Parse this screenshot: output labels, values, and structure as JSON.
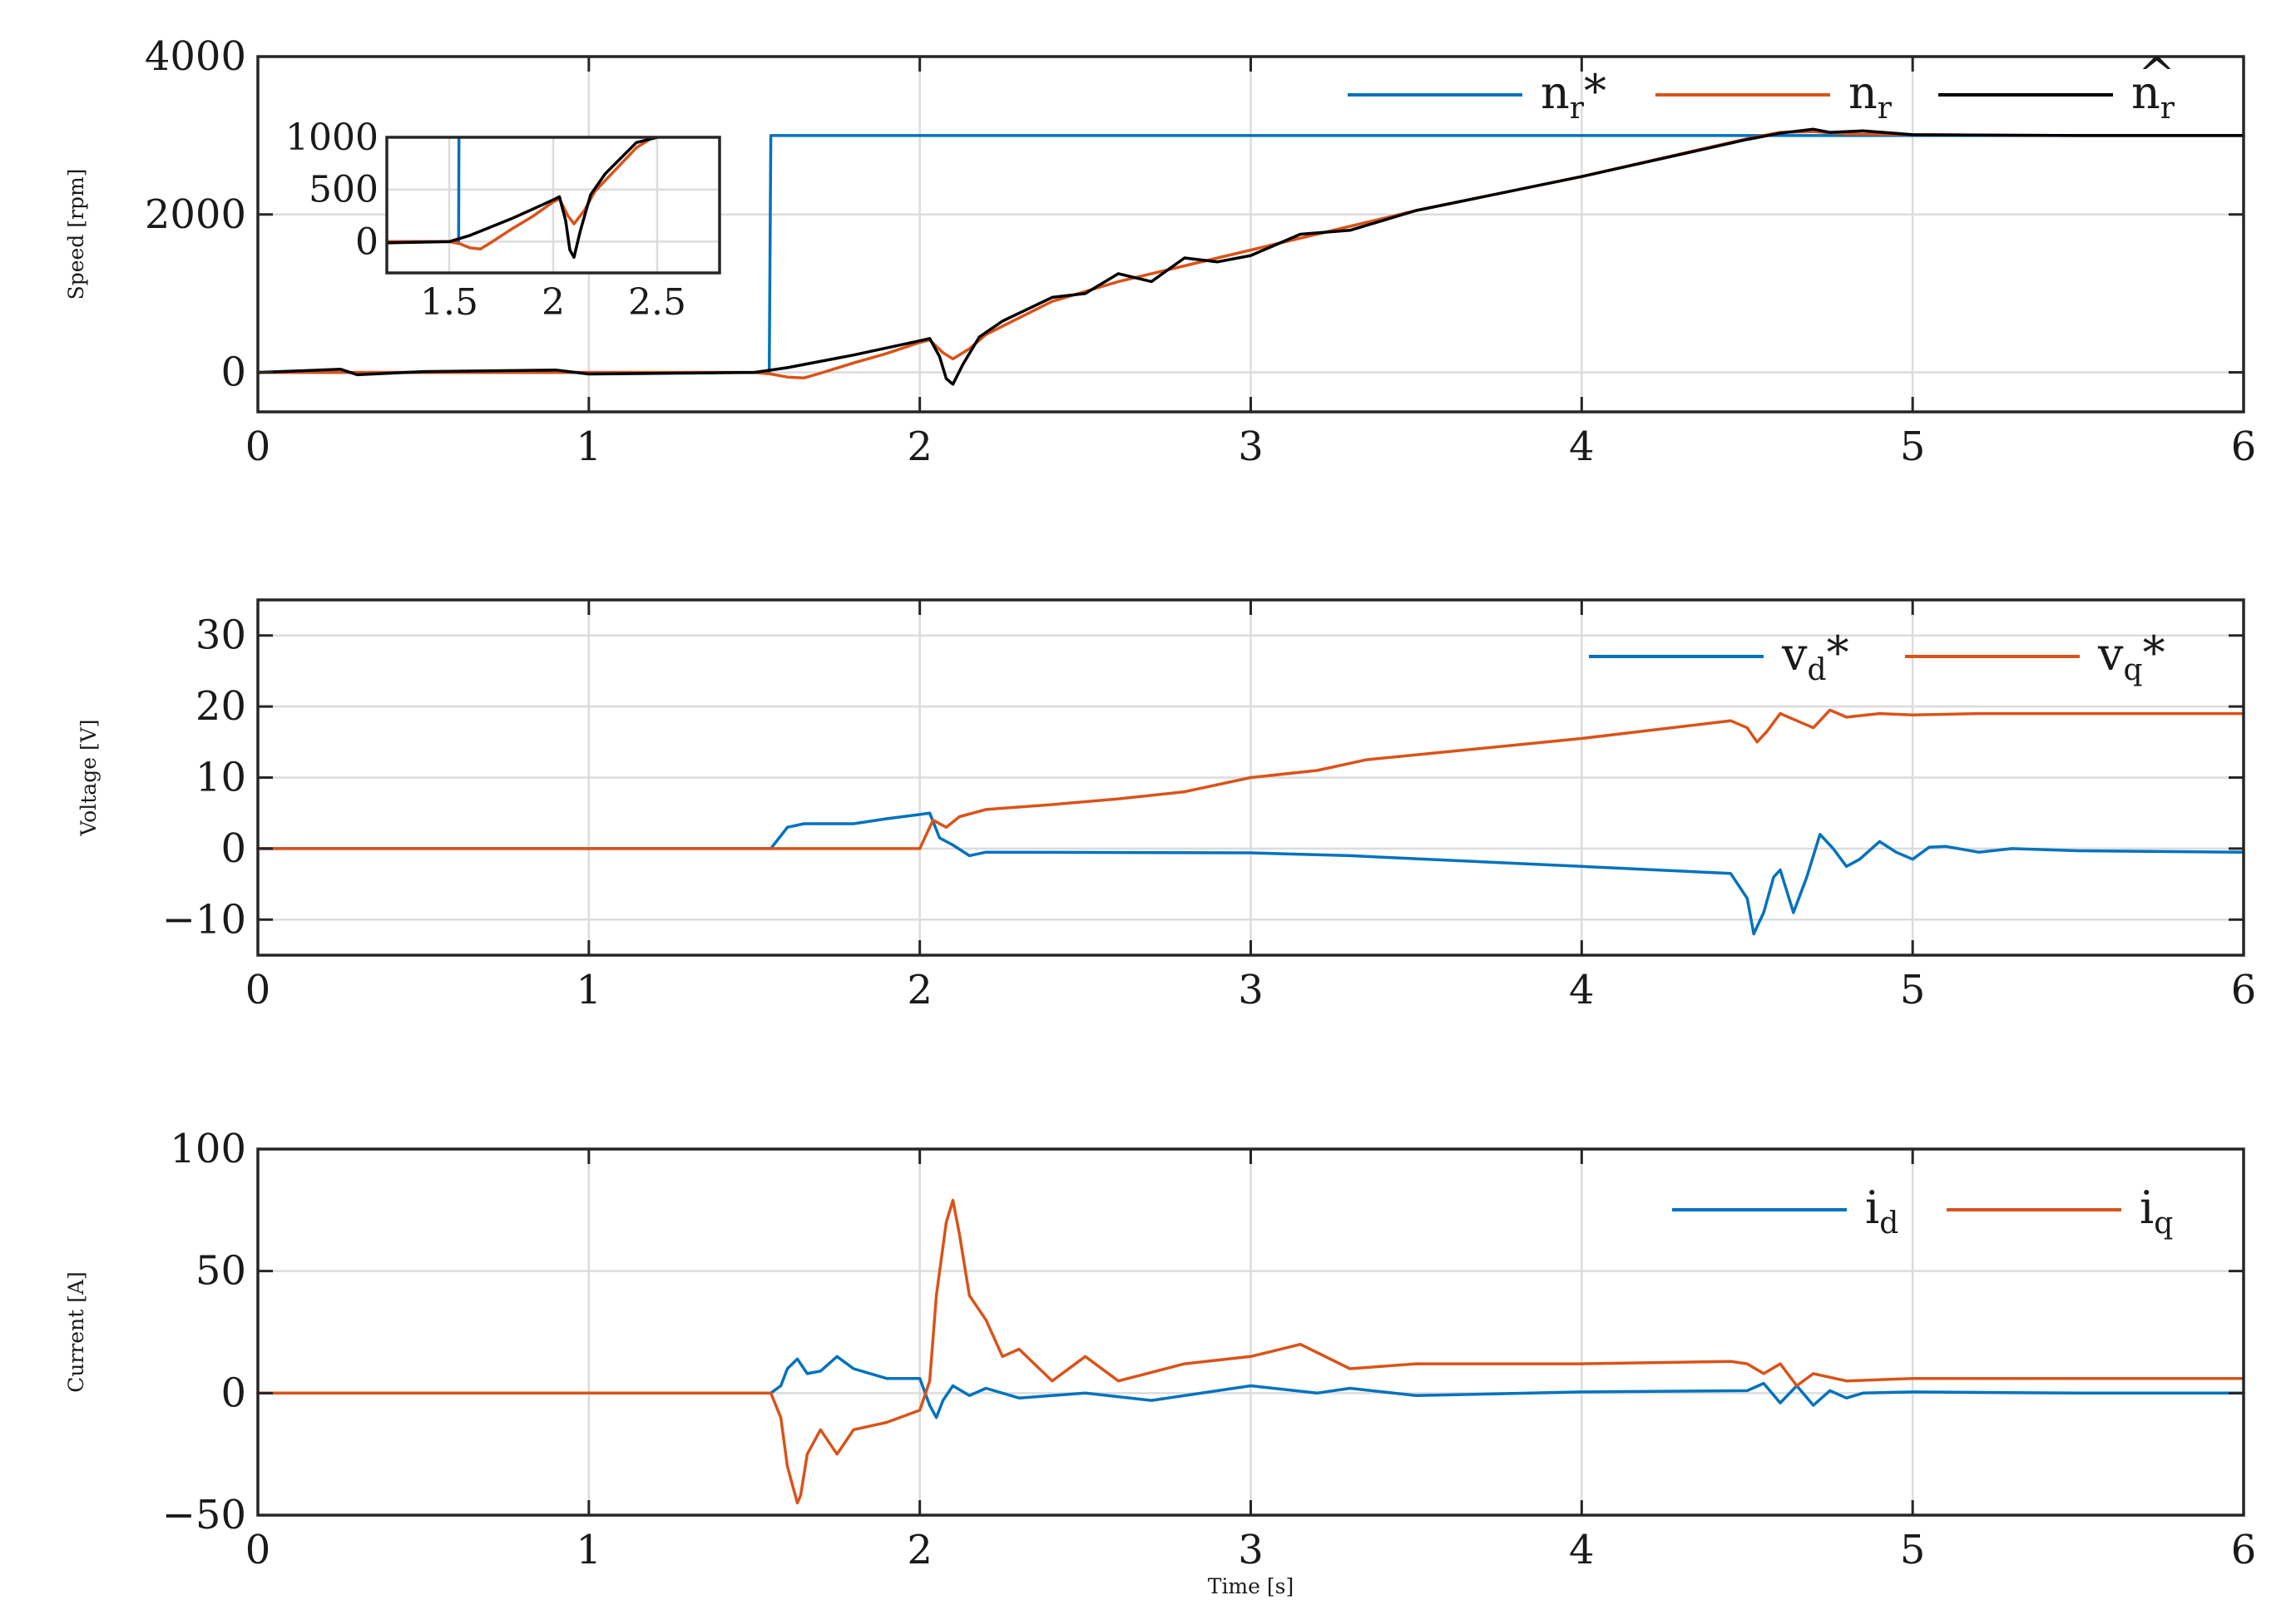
{
  "colors": {
    "blue": "#0072BD",
    "orange": "#D95319",
    "black": "#000000"
  },
  "chart_data": [
    {
      "type": "line",
      "id": "speed",
      "ylabel": "Speed [rpm]",
      "xlim": [
        0,
        6
      ],
      "ylim": [
        -500,
        4000
      ],
      "xticks": [
        0,
        1,
        2,
        3,
        4,
        5,
        6
      ],
      "xtick_labels": [
        "0",
        "1",
        "2",
        "3",
        "4",
        "5",
        "6"
      ],
      "yticks": [
        0,
        2000,
        4000
      ],
      "ytick_labels": [
        "0",
        "2000",
        "4000"
      ],
      "legend": [
        {
          "base": "n",
          "sub": "r",
          "suffix": "*",
          "hat": false,
          "color": "#0072BD"
        },
        {
          "base": "n",
          "sub": "r",
          "suffix": "",
          "hat": false,
          "color": "#D95319"
        },
        {
          "base": "n",
          "sub": "r",
          "suffix": "",
          "hat": true,
          "color": "#000000"
        }
      ],
      "series": [
        {
          "name": "n_r*",
          "color": "#0072BD",
          "x": [
            0,
            1.545,
            1.55,
            6
          ],
          "y": [
            0,
            0,
            3000,
            3000
          ]
        },
        {
          "name": "n_r",
          "color": "#D95319",
          "x": [
            0,
            0.5,
            1,
            1.5,
            1.55,
            1.6,
            1.65,
            1.7,
            1.8,
            1.9,
            2.0,
            2.03,
            2.07,
            2.1,
            2.15,
            2.2,
            2.4,
            2.6,
            2.8,
            3.0,
            3.3,
            3.5,
            4.0,
            4.5,
            4.6,
            4.7,
            4.8,
            5.0,
            5.5,
            6.0
          ],
          "y": [
            0,
            0,
            0,
            0,
            -20,
            -60,
            -70,
            -10,
            120,
            240,
            380,
            410,
            250,
            170,
            300,
            480,
            900,
            1150,
            1350,
            1550,
            1850,
            2050,
            2480,
            2960,
            3040,
            3050,
            3020,
            3010,
            3000,
            3000
          ]
        },
        {
          "name": "n_r hat",
          "color": "#000000",
          "x": [
            0,
            0.25,
            0.3,
            0.5,
            0.9,
            1.0,
            1.5,
            1.6,
            1.8,
            2.0,
            2.03,
            2.06,
            2.08,
            2.1,
            2.13,
            2.18,
            2.25,
            2.4,
            2.5,
            2.6,
            2.7,
            2.8,
            2.9,
            3.0,
            3.15,
            3.3,
            3.5,
            4.0,
            4.5,
            4.6,
            4.7,
            4.75,
            4.85,
            5.0,
            5.5,
            6.0
          ],
          "y": [
            0,
            40,
            -30,
            10,
            30,
            -20,
            0,
            60,
            220,
            400,
            430,
            200,
            -80,
            -150,
            100,
            450,
            650,
            950,
            1000,
            1250,
            1150,
            1450,
            1400,
            1480,
            1750,
            1800,
            2050,
            2480,
            2950,
            3030,
            3080,
            3040,
            3060,
            3010,
            3000,
            3000
          ]
        }
      ],
      "inset": {
        "xlim": [
          1.2,
          2.8
        ],
        "ylim": [
          -300,
          1000
        ],
        "xticks": [
          1.5,
          2,
          2.5
        ],
        "xtick_labels": [
          "1.5",
          "2",
          "2.5"
        ],
        "yticks": [
          0,
          500,
          1000
        ],
        "ytick_labels": [
          "0",
          "500",
          "1000"
        ]
      }
    },
    {
      "type": "line",
      "id": "voltage",
      "ylabel": "Voltage [V]",
      "xlim": [
        0,
        6
      ],
      "ylim": [
        -15,
        35
      ],
      "xticks": [
        0,
        1,
        2,
        3,
        4,
        5,
        6
      ],
      "xtick_labels": [
        "0",
        "1",
        "2",
        "3",
        "4",
        "5",
        "6"
      ],
      "yticks": [
        -10,
        0,
        10,
        20,
        30
      ],
      "ytick_labels": [
        "−10",
        "0",
        "10",
        "20",
        "30"
      ],
      "legend": [
        {
          "base": "v",
          "sub": "d",
          "suffix": "*",
          "hat": false,
          "color": "#0072BD"
        },
        {
          "base": "v",
          "sub": "q",
          "suffix": "*",
          "hat": false,
          "color": "#D95319"
        }
      ],
      "series": [
        {
          "name": "v_d*",
          "color": "#0072BD",
          "x": [
            0,
            1.55,
            1.6,
            1.65,
            1.8,
            1.9,
            2.0,
            2.03,
            2.06,
            2.1,
            2.15,
            2.2,
            3.0,
            3.3,
            4.0,
            4.45,
            4.5,
            4.52,
            4.55,
            4.58,
            4.6,
            4.64,
            4.68,
            4.72,
            4.76,
            4.8,
            4.84,
            4.9,
            4.95,
            5.0,
            5.05,
            5.1,
            5.2,
            5.3,
            5.5,
            6.0
          ],
          "y": [
            0,
            0,
            3,
            3.5,
            3.5,
            4.2,
            4.8,
            5,
            1.5,
            0.5,
            -1,
            -0.5,
            -0.6,
            -1,
            -2.5,
            -3.5,
            -7,
            -12,
            -9,
            -4,
            -3,
            -9,
            -4,
            2,
            0,
            -2.5,
            -1.5,
            1,
            -0.5,
            -1.5,
            0.2,
            0.3,
            -0.5,
            0,
            -0.3,
            -0.5
          ]
        },
        {
          "name": "v_q*",
          "color": "#D95319",
          "x": [
            0,
            1.55,
            2.0,
            2.02,
            2.04,
            2.08,
            2.12,
            2.2,
            2.4,
            2.6,
            2.8,
            3.0,
            3.2,
            3.35,
            4.0,
            4.45,
            4.5,
            4.53,
            4.56,
            4.6,
            4.65,
            4.7,
            4.75,
            4.8,
            4.9,
            5.0,
            5.2,
            6.0
          ],
          "y": [
            0,
            0,
            0,
            2,
            4,
            3,
            4.5,
            5.5,
            6.2,
            7,
            8,
            10,
            11,
            12.5,
            15.5,
            18,
            17,
            15,
            16.5,
            19,
            18,
            17,
            19.5,
            18.5,
            19,
            18.8,
            19,
            19
          ]
        }
      ]
    },
    {
      "type": "line",
      "id": "current",
      "ylabel": "Current [A]",
      "xlabel": "Time [s]",
      "xlim": [
        0,
        6
      ],
      "ylim": [
        -50,
        100
      ],
      "xticks": [
        0,
        1,
        2,
        3,
        4,
        5,
        6
      ],
      "xtick_labels": [
        "0",
        "1",
        "2",
        "3",
        "4",
        "5",
        "6"
      ],
      "yticks": [
        -50,
        0,
        50,
        100
      ],
      "ytick_labels": [
        "−50",
        "0",
        "50",
        "100"
      ],
      "legend": [
        {
          "base": "i",
          "sub": "d",
          "suffix": "",
          "hat": false,
          "color": "#0072BD"
        },
        {
          "base": "i",
          "sub": "q",
          "suffix": "",
          "hat": false,
          "color": "#D95319"
        }
      ],
      "series": [
        {
          "name": "i_d",
          "color": "#0072BD",
          "x": [
            0,
            1.55,
            1.58,
            1.6,
            1.63,
            1.66,
            1.7,
            1.75,
            1.8,
            1.9,
            2.0,
            2.03,
            2.05,
            2.07,
            2.1,
            2.15,
            2.2,
            2.3,
            2.5,
            2.7,
            3.0,
            3.2,
            3.3,
            3.5,
            4.0,
            4.5,
            4.55,
            4.6,
            4.65,
            4.7,
            4.75,
            4.8,
            4.85,
            5.0,
            5.5,
            6.0
          ],
          "y": [
            0,
            0,
            3,
            10,
            14,
            8,
            9,
            15,
            10,
            6,
            6,
            -5,
            -10,
            -3,
            3,
            -1,
            2,
            -2,
            0,
            -3,
            3,
            0,
            2,
            -1,
            0.5,
            1,
            4,
            -4,
            3,
            -5,
            1,
            -2,
            0,
            0.5,
            0,
            0
          ]
        },
        {
          "name": "i_q",
          "color": "#D95319",
          "x": [
            0,
            1.55,
            1.58,
            1.6,
            1.63,
            1.64,
            1.66,
            1.7,
            1.75,
            1.8,
            1.9,
            2.0,
            2.03,
            2.05,
            2.08,
            2.1,
            2.12,
            2.15,
            2.2,
            2.25,
            2.3,
            2.4,
            2.5,
            2.6,
            2.8,
            3.0,
            3.15,
            3.3,
            3.5,
            4.0,
            4.45,
            4.5,
            4.55,
            4.6,
            4.65,
            4.7,
            4.8,
            5.0,
            5.5,
            6.0
          ],
          "y": [
            0,
            0,
            -10,
            -30,
            -45,
            -42,
            -25,
            -15,
            -25,
            -15,
            -12,
            -7,
            5,
            40,
            70,
            79,
            65,
            40,
            30,
            15,
            18,
            5,
            15,
            5,
            12,
            15,
            20,
            10,
            12,
            12,
            13,
            12,
            8,
            12,
            3,
            8,
            5,
            6,
            6,
            6
          ]
        }
      ]
    }
  ]
}
